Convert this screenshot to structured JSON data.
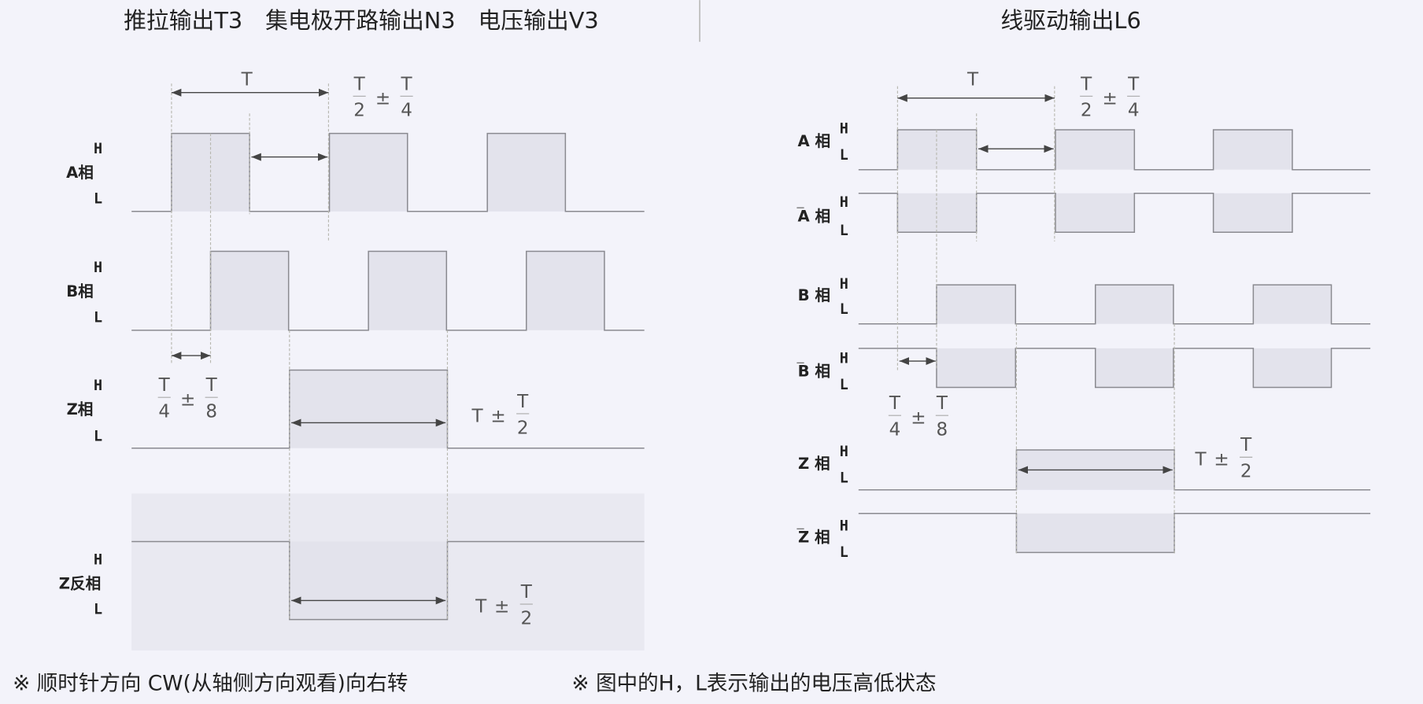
{
  "left": {
    "title": "推拉输出T3　集电极开路输出N3　电压输出V3",
    "signals": [
      {
        "label": "A相",
        "high": "H",
        "low": "L"
      },
      {
        "label": "B相",
        "high": "H",
        "low": "L"
      },
      {
        "label": "Z相",
        "high": "H",
        "low": "L"
      },
      {
        "label": "Z反相",
        "high": "H",
        "low": "L"
      }
    ],
    "period_label": "T",
    "frac_duty": {
      "n1": "T",
      "d1": "2",
      "op": "±",
      "n2": "T",
      "d2": "4"
    },
    "frac_phase": {
      "n1": "T",
      "d1": "4",
      "op": "±",
      "n2": "T",
      "d2": "8"
    },
    "frac_z": {
      "a": "T",
      "op": "±",
      "n2": "T",
      "d2": "2"
    },
    "frac_zbar": {
      "a": "T",
      "op": "±",
      "n2": "T",
      "d2": "2"
    }
  },
  "right": {
    "title": "线驱动输出L6",
    "signals": [
      {
        "label": "A 相",
        "bar": false,
        "high": "H",
        "low": "L"
      },
      {
        "label": "A 相",
        "bar": true,
        "high": "H",
        "low": "L"
      },
      {
        "label": "B 相",
        "bar": false,
        "high": "H",
        "low": "L"
      },
      {
        "label": "B 相",
        "bar": true,
        "high": "H",
        "low": "L"
      },
      {
        "label": "Z 相",
        "bar": false,
        "high": "H",
        "low": "L"
      },
      {
        "label": "Z 相",
        "bar": true,
        "high": "H",
        "low": "L"
      }
    ],
    "period_label": "T",
    "frac_duty": {
      "n1": "T",
      "d1": "2",
      "op": "±",
      "n2": "T",
      "d2": "4"
    },
    "frac_phase": {
      "n1": "T",
      "d1": "4",
      "op": "±",
      "n2": "T",
      "d2": "8"
    },
    "frac_z": {
      "a": "T",
      "op": "±",
      "n2": "T",
      "d2": "2"
    }
  },
  "footer": {
    "note_rotation": "※ 顺时针方向 CW(从轴侧方向观看)向右转",
    "note_hl": "※ 图中的H，L表示输出的电压高低状态"
  },
  "colors": {
    "background": "#f3f3fa",
    "pulse_fill": "#e3e3ec",
    "line": "#8a8a90"
  }
}
